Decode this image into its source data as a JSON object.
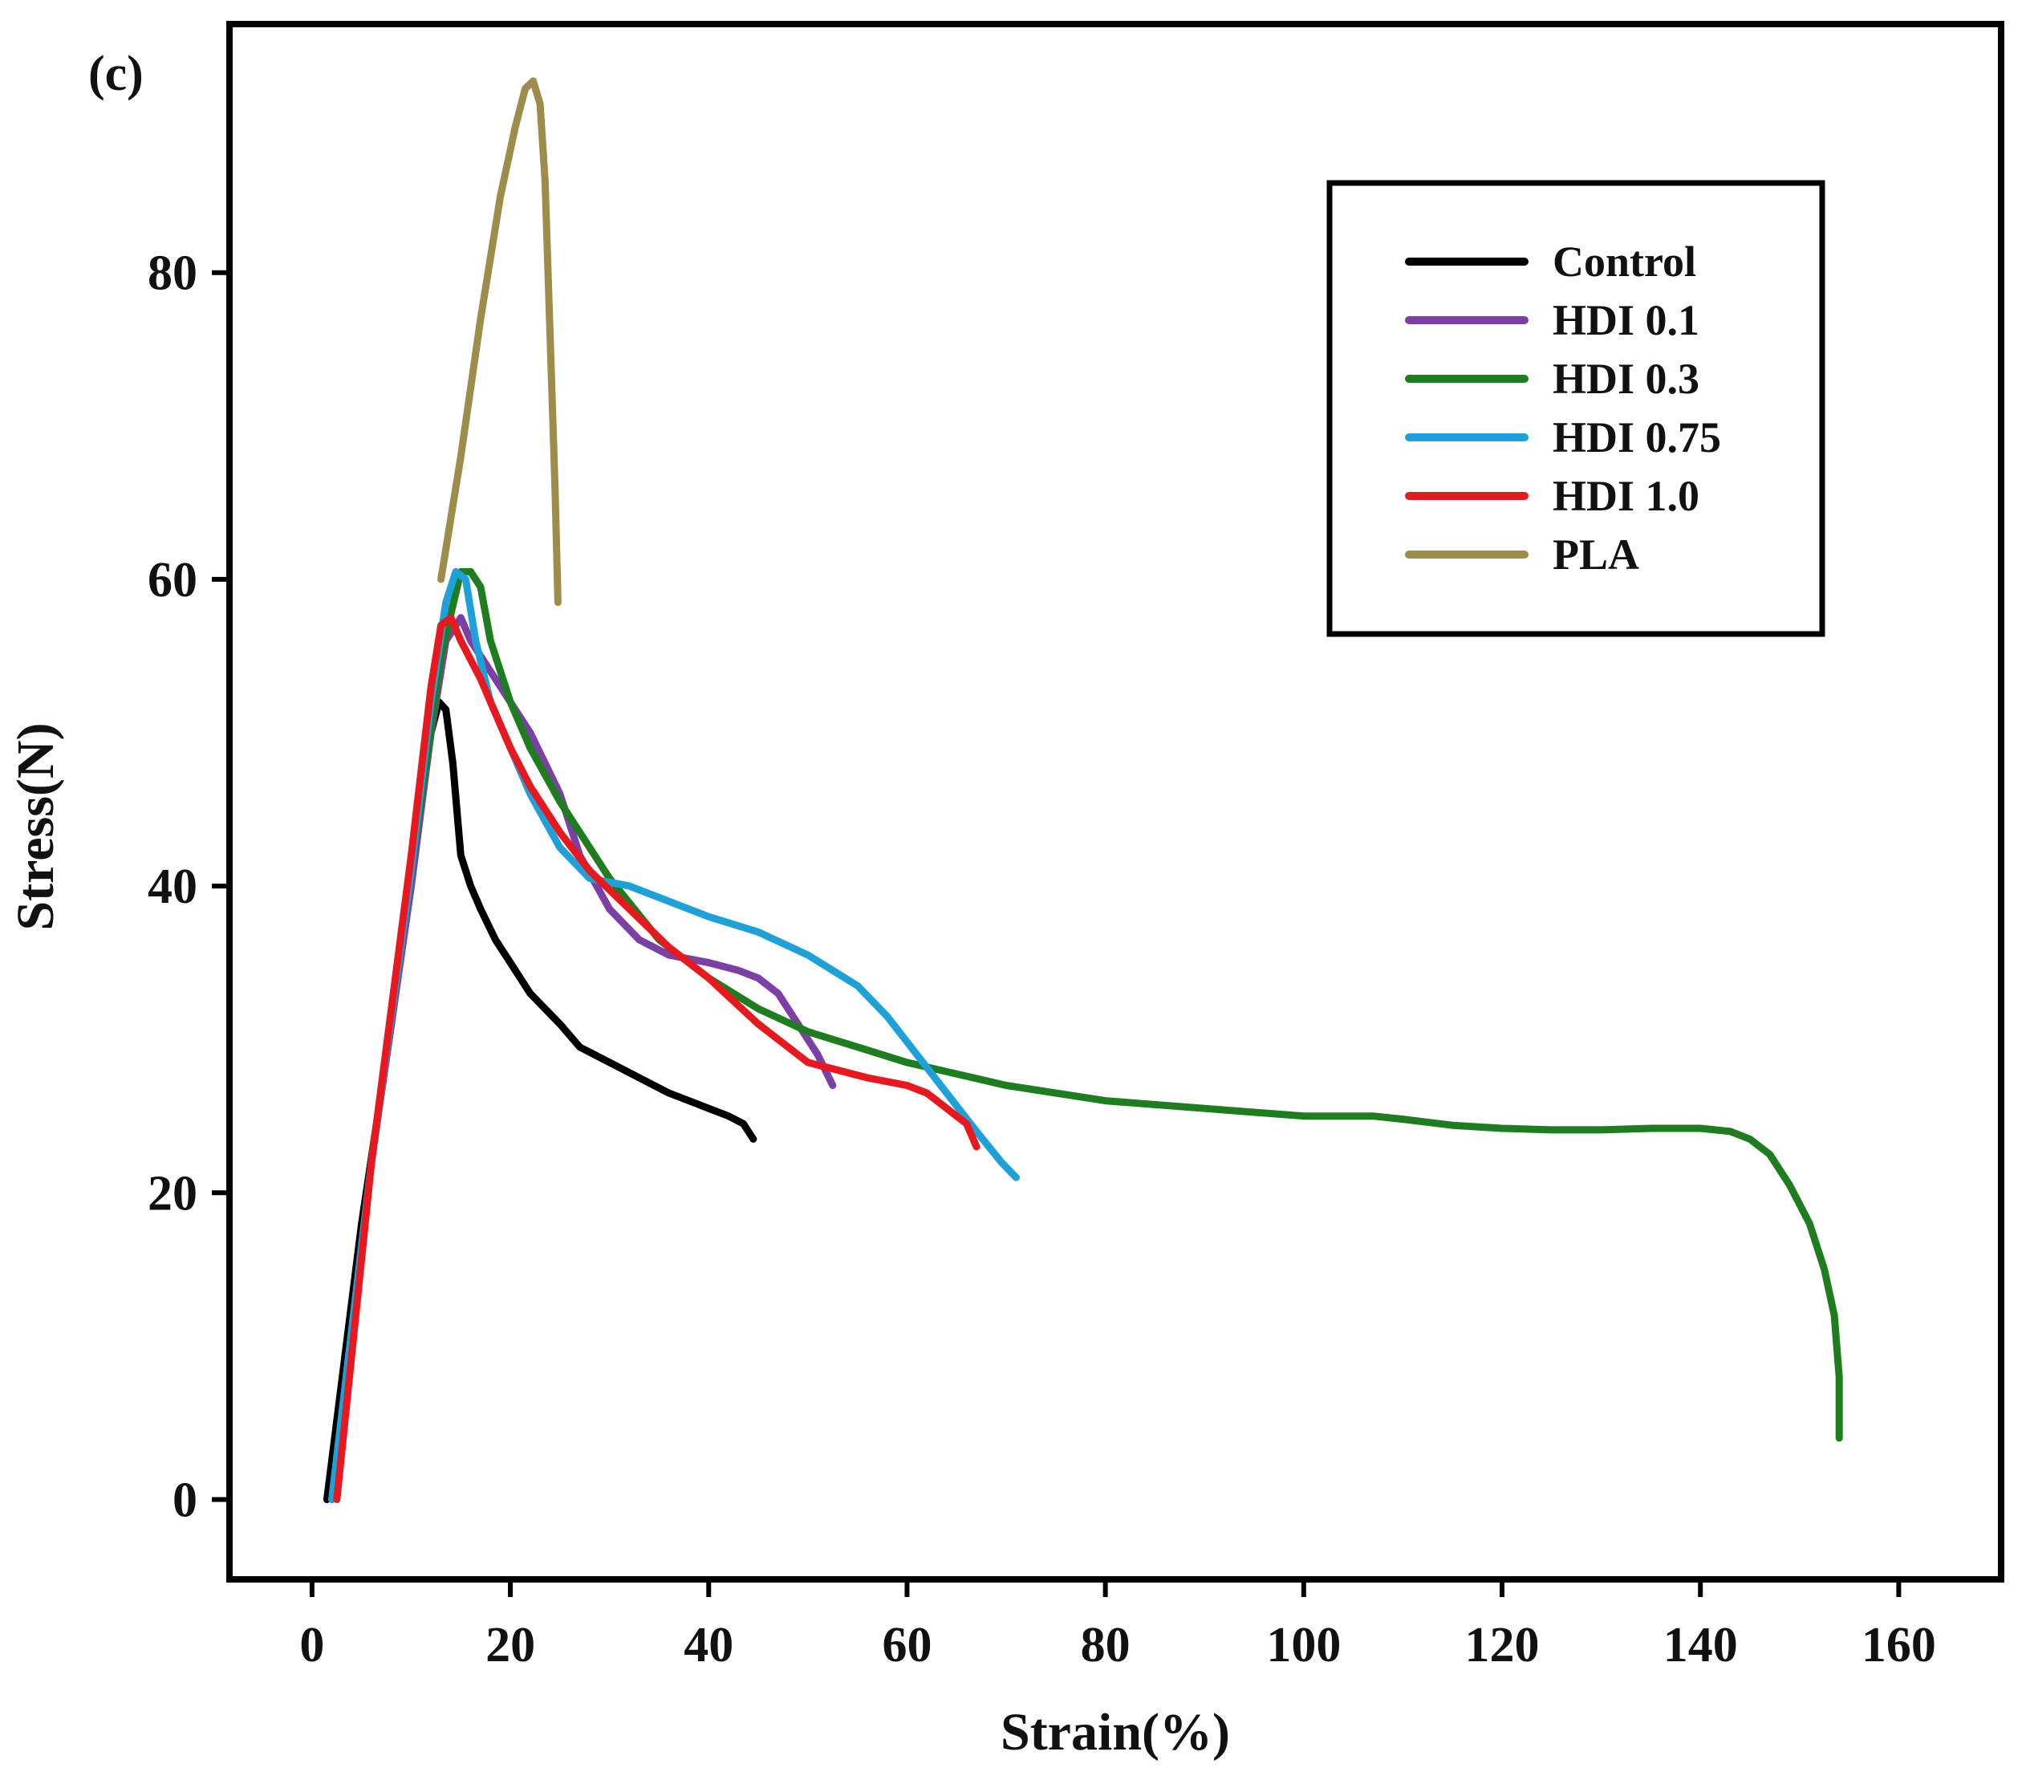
{
  "panel_label": "(c)",
  "chart_data": {
    "type": "line",
    "title": "",
    "xlabel": "Strain(%)",
    "ylabel": "Stress(N)",
    "xlim": [
      -8,
      170
    ],
    "ylim": [
      -5,
      96
    ],
    "xticks": [
      0,
      20,
      40,
      60,
      80,
      100,
      120,
      140,
      160
    ],
    "xtick_labels": [
      "0",
      "20",
      "40",
      "60",
      "80",
      "100",
      "120",
      "140",
      "160"
    ],
    "yticks": [
      0,
      20,
      40,
      60,
      80
    ],
    "ytick_labels": [
      "0",
      "20",
      "40",
      "60",
      "80"
    ],
    "grid": false,
    "legend": "top-right",
    "series": [
      {
        "name": "Control",
        "color": "#000000",
        "x": [
          1.5,
          5,
          8,
          10,
          12,
          12.8,
          13.5,
          14.2,
          15,
          16,
          17,
          18.5,
          20,
          22,
          25,
          27,
          30,
          33,
          36,
          38,
          40,
          42,
          43.5,
          44.5
        ],
        "y": [
          0,
          18,
          31,
          41,
          50,
          52,
          51.5,
          48,
          42,
          40,
          38.5,
          36.5,
          35,
          33,
          31,
          29.5,
          28.5,
          27.5,
          26.5,
          26,
          25.5,
          25,
          24.5,
          23.5
        ]
      },
      {
        "name": "HDI 0.1",
        "color": "#7b3fa6",
        "x": [
          2,
          6,
          10,
          12,
          13.5,
          15,
          16,
          18,
          20,
          22,
          25,
          27,
          30,
          33,
          36,
          40,
          43,
          45,
          47,
          49,
          51,
          52.5
        ],
        "y": [
          0,
          22,
          40,
          50,
          56,
          57.5,
          56,
          54,
          52,
          50,
          46,
          42,
          38.5,
          36.5,
          35.5,
          35,
          34.5,
          34,
          33,
          31,
          29,
          27
        ]
      },
      {
        "name": "HDI 0.3",
        "color": "#1e7d1e",
        "x": [
          2,
          6,
          10,
          13,
          15,
          16,
          17,
          18,
          20,
          22,
          25,
          30,
          35,
          40,
          45,
          50,
          55,
          60,
          70,
          80,
          90,
          100,
          107,
          110,
          115,
          120,
          125,
          130,
          135,
          140,
          143,
          145,
          147,
          149,
          151,
          152.5,
          153.5,
          154,
          154
        ],
        "y": [
          0,
          22,
          41,
          55,
          60.5,
          60.5,
          59.5,
          56,
          52,
          49,
          45.5,
          40.5,
          36.5,
          34,
          32,
          30.5,
          29.5,
          28.5,
          27,
          26,
          25.5,
          25,
          25,
          24.8,
          24.4,
          24.2,
          24.1,
          24.1,
          24.2,
          24.2,
          24,
          23.5,
          22.5,
          20.5,
          18,
          15,
          12,
          8,
          4
        ]
      },
      {
        "name": "HDI 0.75",
        "color": "#1ea1d9",
        "x": [
          2,
          6,
          10,
          12,
          13.5,
          14.5,
          15.5,
          16.5,
          18,
          20,
          22,
          25,
          28,
          32,
          36,
          40,
          45,
          50,
          55,
          58,
          61,
          64,
          67,
          69.5,
          71
        ],
        "y": [
          0,
          22,
          41,
          52,
          58.5,
          60.5,
          60,
          56,
          52,
          49,
          46,
          42.5,
          40.5,
          40,
          39,
          38,
          37,
          35.5,
          33.5,
          31.5,
          29,
          26.5,
          24,
          22,
          21
        ]
      },
      {
        "name": "HDI 1.0",
        "color": "#e8191e",
        "x": [
          2.5,
          6,
          10,
          12,
          13,
          14,
          15,
          17,
          20,
          22,
          25,
          28,
          32,
          36,
          40,
          45,
          48,
          50,
          53,
          56,
          60,
          62,
          64,
          66,
          67
        ],
        "y": [
          0,
          22,
          42,
          53,
          57,
          57.5,
          56,
          53.5,
          49,
          46.5,
          43.5,
          41,
          38.5,
          36,
          34,
          31,
          29.5,
          28.5,
          28,
          27.5,
          27,
          26.5,
          25.5,
          24.5,
          23
        ]
      },
      {
        "name": "PLA",
        "color": "#9e8c4a",
        "x": [
          13,
          15,
          17,
          19,
          20.5,
          21.5,
          22.3,
          23,
          23.5,
          24,
          24.5,
          24.8
        ],
        "y": [
          60,
          68,
          77,
          85,
          89.5,
          92,
          92.5,
          91,
          86,
          76,
          66,
          58.5
        ]
      }
    ]
  }
}
